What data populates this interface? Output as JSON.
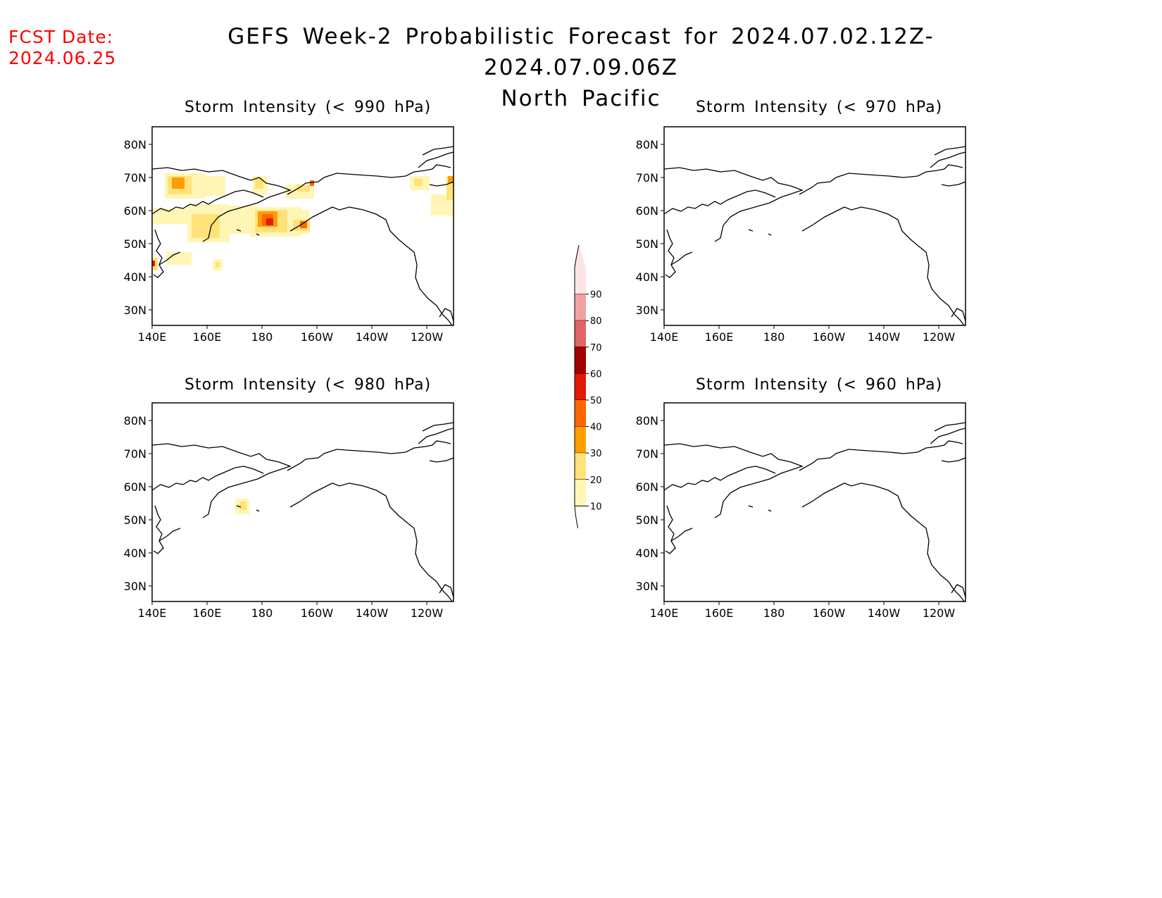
{
  "header": {
    "fcst_label": "FCST Date:",
    "fcst_date": "2024.06.25",
    "title_line1": "GEFS Week-2 Probabilistic Forecast for 2024.07.02.12Z-2024.07.09.06Z",
    "title_line2": "North Pacific"
  },
  "axes": {
    "lon_labels": [
      "140E",
      "160E",
      "180",
      "160W",
      "140W",
      "120W"
    ],
    "lat_labels": [
      "80N",
      "70N",
      "60N",
      "50N",
      "40N",
      "30N"
    ]
  },
  "panels": [
    {
      "id": "p990",
      "title": "Storm Intensity (< 990 hPa)"
    },
    {
      "id": "p970",
      "title": "Storm Intensity (< 970 hPa)"
    },
    {
      "id": "p980",
      "title": "Storm Intensity (< 980 hPa)"
    },
    {
      "id": "p960",
      "title": "Storm Intensity (< 960 hPa)"
    }
  ],
  "legend": {
    "levels": [
      "90",
      "80",
      "70",
      "60",
      "50",
      "40",
      "30",
      "20",
      "10"
    ],
    "colors": [
      "#fde4e4",
      "#f2a1a1",
      "#e06666",
      "#a40000",
      "#e31a00",
      "#ff6600",
      "#ff9d00",
      "#ffe27a",
      "#fff6b5"
    ]
  }
}
